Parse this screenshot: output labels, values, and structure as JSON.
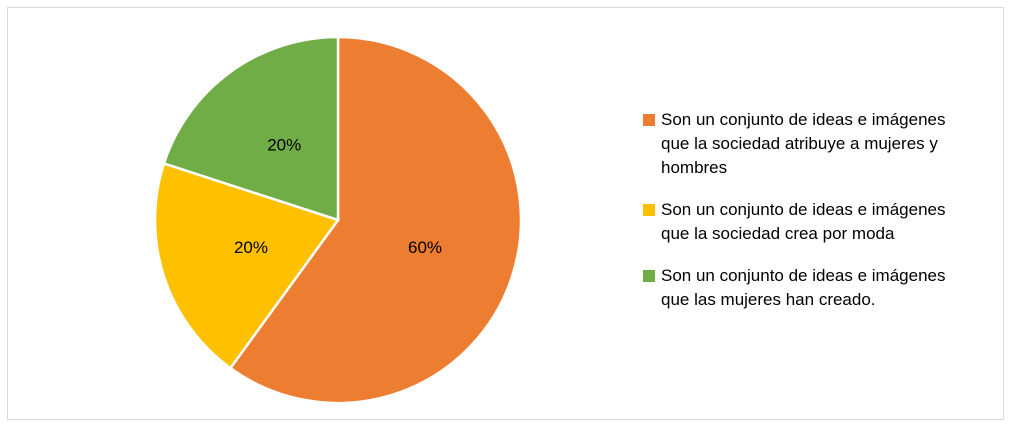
{
  "chart_data": {
    "type": "pie",
    "categories": [
      "Son un conjunto de ideas e imágenes que la sociedad atribuye a mujeres y hombres",
      "Son un conjunto de ideas e imágenes que la sociedad crea por moda",
      "Son un conjunto de ideas e imágenes que las mujeres han creado."
    ],
    "values": [
      60,
      20,
      20
    ],
    "value_labels": [
      "60%",
      "20%",
      "20%"
    ],
    "colors": [
      "#ed7d31",
      "#ffc000",
      "#70ad47"
    ],
    "legend": "right"
  }
}
